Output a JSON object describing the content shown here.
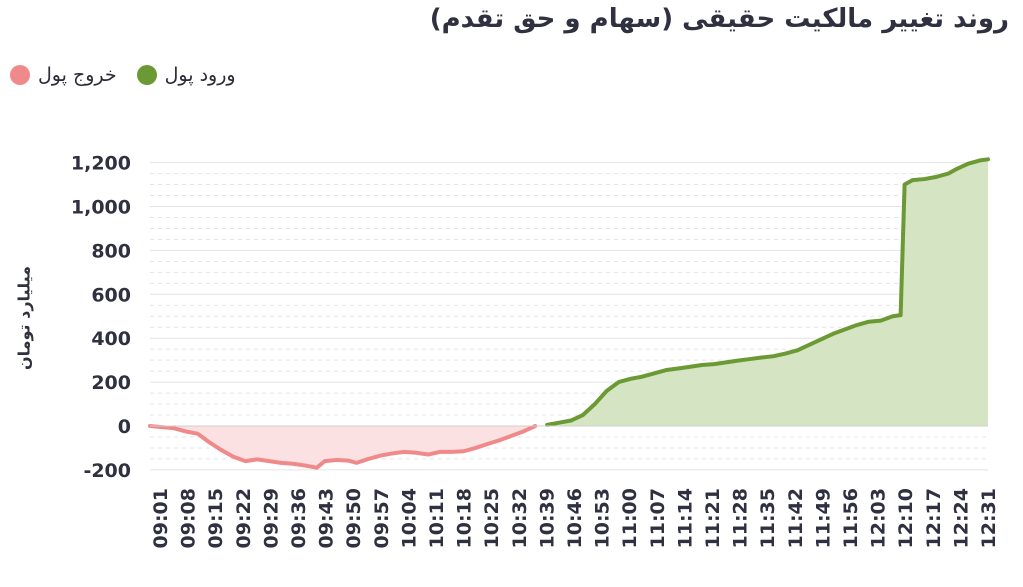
{
  "header": {
    "title": "روند تغییر مالکیت حقیقی (سهام و حق تقدم)"
  },
  "legend": {
    "items": [
      {
        "label": "ورود پول",
        "color": "#6b9a34"
      },
      {
        "label": "خروج پول",
        "color": "#f08a8a"
      }
    ]
  },
  "chart_data": {
    "type": "area",
    "title": "روند تغییر مالکیت حقیقی (سهام و حق تقدم)",
    "ylabel": "میلیارد تومان",
    "xlabel": "",
    "ylim": [
      -230,
      1250
    ],
    "grid": true,
    "y_ticks": [
      "1,200",
      "1,000",
      "800",
      "600",
      "400",
      "200",
      "0",
      "-200"
    ],
    "y_tick_values": [
      1200,
      1000,
      800,
      600,
      400,
      200,
      0,
      -200
    ],
    "x_ticks": [
      "09:01",
      "09:08",
      "09:15",
      "09:22",
      "09:29",
      "09:36",
      "09:43",
      "09:50",
      "09:57",
      "10:04",
      "10:11",
      "10:18",
      "10:25",
      "10:32",
      "10:39",
      "10:46",
      "10:53",
      "11:00",
      "11:07",
      "11:14",
      "11:21",
      "11:28",
      "11:35",
      "11:42",
      "11:49",
      "11:56",
      "12:03",
      "12:10",
      "12:17",
      "12:24",
      "12:31"
    ],
    "legend_position": "top-left",
    "series": [
      {
        "name": "خروج پول",
        "color": "#f08a8a",
        "fill": "#fbe1e1",
        "points": [
          [
            "09:01",
            0
          ],
          [
            "09:04",
            -5
          ],
          [
            "09:07",
            -10
          ],
          [
            "09:10",
            -25
          ],
          [
            "09:13",
            -35
          ],
          [
            "09:16",
            -75
          ],
          [
            "09:19",
            -110
          ],
          [
            "09:22",
            -140
          ],
          [
            "09:25",
            -160
          ],
          [
            "09:28",
            -152
          ],
          [
            "09:31",
            -160
          ],
          [
            "09:34",
            -168
          ],
          [
            "09:37",
            -172
          ],
          [
            "09:40",
            -180
          ],
          [
            "09:43",
            -190
          ],
          [
            "09:45",
            -160
          ],
          [
            "09:48",
            -155
          ],
          [
            "09:51",
            -158
          ],
          [
            "09:53",
            -168
          ],
          [
            "09:56",
            -150
          ],
          [
            "09:59",
            -135
          ],
          [
            "10:02",
            -125
          ],
          [
            "10:05",
            -118
          ],
          [
            "10:08",
            -122
          ],
          [
            "10:11",
            -130
          ],
          [
            "10:14",
            -118
          ],
          [
            "10:17",
            -118
          ],
          [
            "10:20",
            -115
          ],
          [
            "10:23",
            -100
          ],
          [
            "10:26",
            -82
          ],
          [
            "10:29",
            -65
          ],
          [
            "10:32",
            -45
          ],
          [
            "10:35",
            -25
          ],
          [
            "10:38",
            0
          ]
        ]
      },
      {
        "name": "ورود پول",
        "color": "#6b9a34",
        "fill": "#d5e4c3",
        "points": [
          [
            "10:41",
            5
          ],
          [
            "10:44",
            15
          ],
          [
            "10:47",
            25
          ],
          [
            "10:50",
            50
          ],
          [
            "10:53",
            100
          ],
          [
            "10:56",
            160
          ],
          [
            "10:59",
            200
          ],
          [
            "11:02",
            215
          ],
          [
            "11:05",
            225
          ],
          [
            "11:08",
            240
          ],
          [
            "11:11",
            255
          ],
          [
            "11:14",
            262
          ],
          [
            "11:17",
            270
          ],
          [
            "11:20",
            278
          ],
          [
            "11:23",
            282
          ],
          [
            "11:26",
            290
          ],
          [
            "11:29",
            298
          ],
          [
            "11:32",
            305
          ],
          [
            "11:35",
            312
          ],
          [
            "11:38",
            318
          ],
          [
            "11:41",
            330
          ],
          [
            "11:44",
            345
          ],
          [
            "11:47",
            370
          ],
          [
            "11:50",
            395
          ],
          [
            "11:53",
            420
          ],
          [
            "11:56",
            440
          ],
          [
            "11:59",
            460
          ],
          [
            "12:02",
            475
          ],
          [
            "12:05",
            480
          ],
          [
            "12:08",
            500
          ],
          [
            "12:10",
            505
          ],
          [
            "12:11",
            1100
          ],
          [
            "12:13",
            1120
          ],
          [
            "12:16",
            1125
          ],
          [
            "12:19",
            1135
          ],
          [
            "12:22",
            1150
          ],
          [
            "12:24",
            1170
          ],
          [
            "12:27",
            1195
          ],
          [
            "12:30",
            1210
          ],
          [
            "12:32",
            1215
          ]
        ]
      }
    ]
  }
}
